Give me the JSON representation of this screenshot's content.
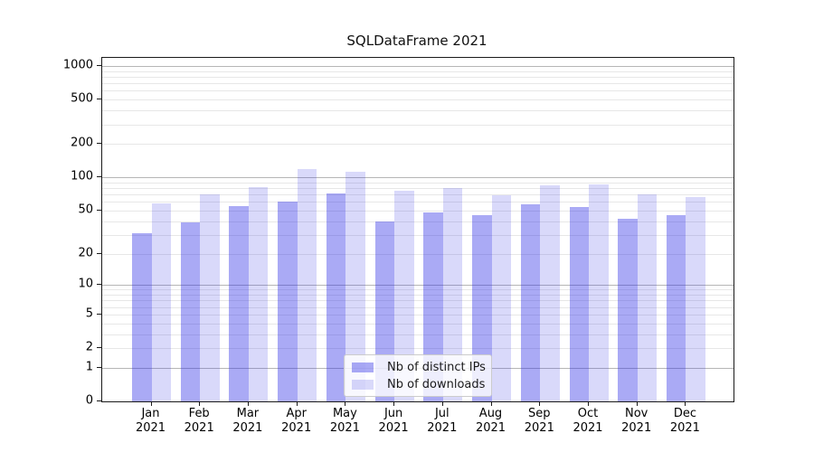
{
  "chart_data": {
    "type": "bar",
    "title": "SQLDataFrame 2021",
    "categories": [
      "Jan\n2021",
      "Feb\n2021",
      "Mar\n2021",
      "Apr\n2021",
      "May\n2021",
      "Jun\n2021",
      "Jul\n2021",
      "Aug\n2021",
      "Sep\n2021",
      "Oct\n2021",
      "Nov\n2021",
      "Dec\n2021"
    ],
    "series": [
      {
        "name": "Nb of distinct IPs",
        "color": "rgba(43,43,230,0.40)",
        "values": [
          31,
          39,
          55,
          60,
          71,
          40,
          48,
          45,
          57,
          54,
          42,
          45
        ]
      },
      {
        "name": "Nb of downloads",
        "color": "rgba(43,43,230,0.18)",
        "values": [
          58,
          70,
          82,
          119,
          112,
          76,
          80,
          69,
          85,
          86,
          70,
          66
        ]
      }
    ],
    "xlabel": "",
    "ylabel": "",
    "yscale": "log1p",
    "ylim": [
      0,
      1180
    ],
    "yticks": [
      0,
      1,
      2,
      5,
      10,
      20,
      50,
      100,
      200,
      500,
      1000
    ],
    "ytick_labels": [
      "0",
      "1",
      "2",
      "5",
      "10",
      "20",
      "50",
      "100",
      "200",
      "500",
      "1000"
    ],
    "grid": "horizontal, minor + major (major at 1, 10, 100, 1000)",
    "legend_position": "lower center inside plot",
    "legend_entries": [
      "Nb of distinct IPs",
      "Nb of downloads"
    ]
  },
  "colors": {
    "bar_distinct_ips": "rgba(43,43,230,0.40)",
    "bar_downloads": "rgba(43,43,230,0.18)",
    "grid_major": "#b6b6b6",
    "grid_minor": "#e7e7e7",
    "spine": "#1a1a1a",
    "background": "#ffffff"
  }
}
